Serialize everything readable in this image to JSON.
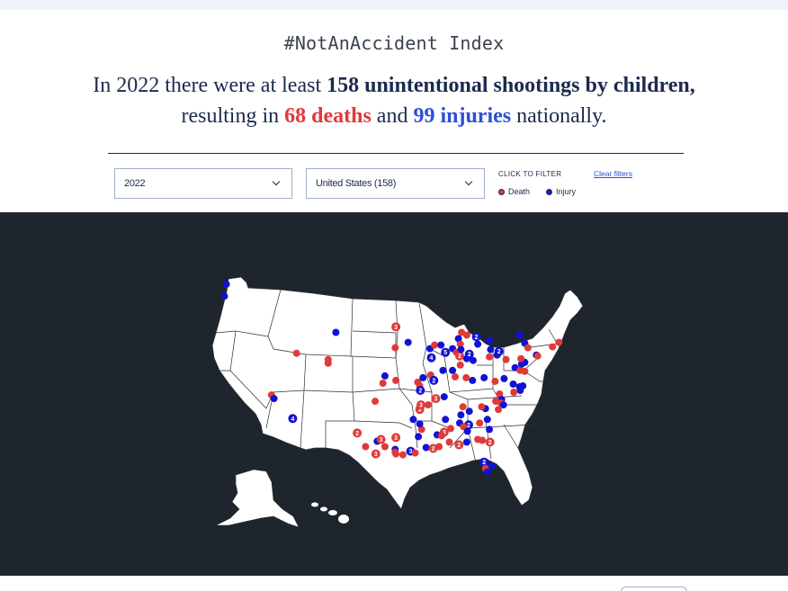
{
  "header": {
    "index_title": "#NotAnAccident Index",
    "headline": {
      "prefix": "In 2022 there were at least ",
      "total": "158 unintentional shootings by children,",
      "middle": " resulting in ",
      "deaths": "68 deaths",
      "and": " and ",
      "injuries": "99 injuries",
      "suffix": " nationally."
    }
  },
  "filters": {
    "year": "2022",
    "region": "United States (158)",
    "click_to_filter": "CLICK TO FILTER",
    "legend": [
      {
        "label": "Death",
        "color": "#e03a38"
      },
      {
        "label": "Injury",
        "color": "#1c1ccc"
      }
    ],
    "clear_label": "Clear filters"
  },
  "colors": {
    "death": "#e03a38",
    "injury": "#1212d4",
    "map_background": "#1f252d",
    "land": "#ffffff",
    "borders": "#2a2f38"
  },
  "map": {
    "region": "United States",
    "incidents": [
      {
        "lat": 48.6,
        "lon": -122.6,
        "type": "injury"
      },
      {
        "lat": 47.3,
        "lon": -122.9,
        "type": "injury"
      },
      {
        "lat": 43.3,
        "lon": -105.6,
        "type": "injury"
      },
      {
        "lat": 41.0,
        "lon": -111.7,
        "type": "death"
      },
      {
        "lat": 40.3,
        "lon": -106.8,
        "type": "death"
      },
      {
        "lat": 39.9,
        "lon": -106.8,
        "type": "death"
      },
      {
        "lat": 43.9,
        "lon": -96.3,
        "type": "death",
        "count": 3
      },
      {
        "lat": 41.6,
        "lon": -96.4,
        "type": "death"
      },
      {
        "lat": 42.2,
        "lon": -94.4,
        "type": "injury"
      },
      {
        "lat": 36.4,
        "lon": -115.6,
        "type": "death"
      },
      {
        "lat": 36.0,
        "lon": -115.2,
        "type": "injury"
      },
      {
        "lat": 33.8,
        "lon": -112.3,
        "type": "injury",
        "count": 4
      },
      {
        "lat": 38.5,
        "lon": -98.0,
        "type": "injury"
      },
      {
        "lat": 37.7,
        "lon": -98.3,
        "type": "death"
      },
      {
        "lat": 38.0,
        "lon": -96.3,
        "type": "death"
      },
      {
        "lat": 35.7,
        "lon": -99.5,
        "type": "death"
      },
      {
        "lat": 32.2,
        "lon": -102.3,
        "type": "death",
        "count": 2
      },
      {
        "lat": 30.7,
        "lon": -101.0,
        "type": "death"
      },
      {
        "lat": 31.3,
        "lon": -99.2,
        "type": "injury"
      },
      {
        "lat": 31.5,
        "lon": -98.6,
        "type": "death",
        "count": 3
      },
      {
        "lat": 29.9,
        "lon": -99.4,
        "type": "death",
        "count": 3
      },
      {
        "lat": 30.7,
        "lon": -98.0,
        "type": "death"
      },
      {
        "lat": 31.7,
        "lon": -96.3,
        "type": "death",
        "count": 3
      },
      {
        "lat": 30.4,
        "lon": -96.4,
        "type": "injury"
      },
      {
        "lat": 30.1,
        "lon": -96.4,
        "type": "death"
      },
      {
        "lat": 29.9,
        "lon": -96.3,
        "type": "death"
      },
      {
        "lat": 29.8,
        "lon": -95.2,
        "type": "death"
      },
      {
        "lat": 30.2,
        "lon": -94.0,
        "type": "injury",
        "count": 3
      },
      {
        "lat": 30.0,
        "lon": -93.3,
        "type": "death"
      },
      {
        "lat": 30.6,
        "lon": -91.6,
        "type": "injury"
      },
      {
        "lat": 30.5,
        "lon": -90.5,
        "type": "death",
        "count": 2
      },
      {
        "lat": 30.7,
        "lon": -89.6,
        "type": "death"
      },
      {
        "lat": 31.8,
        "lon": -92.8,
        "type": "injury"
      },
      {
        "lat": 32.6,
        "lon": -92.3,
        "type": "death"
      },
      {
        "lat": 33.2,
        "lon": -92.6,
        "type": "injury"
      },
      {
        "lat": 33.7,
        "lon": -93.6,
        "type": "injury"
      },
      {
        "lat": 34.8,
        "lon": -92.6,
        "type": "death",
        "count": 3
      },
      {
        "lat": 35.3,
        "lon": -92.4,
        "type": "death",
        "count": 3
      },
      {
        "lat": 36.0,
        "lon": -90.1,
        "type": "death",
        "count": 3
      },
      {
        "lat": 35.3,
        "lon": -91.3,
        "type": "death"
      },
      {
        "lat": 36.2,
        "lon": -88.8,
        "type": "injury"
      },
      {
        "lat": 37.4,
        "lon": -92.6,
        "type": "death"
      },
      {
        "lat": 36.9,
        "lon": -92.5,
        "type": "injury",
        "count": 2
      },
      {
        "lat": 37.8,
        "lon": -92.9,
        "type": "death"
      },
      {
        "lat": 38.3,
        "lon": -92.1,
        "type": "injury"
      },
      {
        "lat": 38.6,
        "lon": -90.9,
        "type": "death"
      },
      {
        "lat": 38.0,
        "lon": -90.4,
        "type": "injury",
        "count": 2
      },
      {
        "lat": 40.5,
        "lon": -90.8,
        "type": "injury",
        "count": 4
      },
      {
        "lat": 41.5,
        "lon": -91.0,
        "type": "injury"
      },
      {
        "lat": 41.9,
        "lon": -90.3,
        "type": "death"
      },
      {
        "lat": 41.9,
        "lon": -89.3,
        "type": "injury"
      },
      {
        "lat": 41.1,
        "lon": -88.6,
        "type": "injury",
        "count": 5
      },
      {
        "lat": 41.5,
        "lon": -87.5,
        "type": "injury"
      },
      {
        "lat": 41.1,
        "lon": -86.9,
        "type": "death"
      },
      {
        "lat": 40.7,
        "lon": -86.4,
        "type": "death",
        "count": 2
      },
      {
        "lat": 40.4,
        "lon": -85.3,
        "type": "injury"
      },
      {
        "lat": 40.9,
        "lon": -84.9,
        "type": "injury",
        "count": 2
      },
      {
        "lat": 40.2,
        "lon": -84.3,
        "type": "injury"
      },
      {
        "lat": 39.7,
        "lon": -86.3,
        "type": "death"
      },
      {
        "lat": 39.1,
        "lon": -89.0,
        "type": "injury"
      },
      {
        "lat": 39.1,
        "lon": -87.5,
        "type": "injury"
      },
      {
        "lat": 38.4,
        "lon": -87.1,
        "type": "death"
      },
      {
        "lat": 38.3,
        "lon": -85.4,
        "type": "death"
      },
      {
        "lat": 38.0,
        "lon": -84.4,
        "type": "injury"
      },
      {
        "lat": 38.3,
        "lon": -82.6,
        "type": "injury"
      },
      {
        "lat": 37.9,
        "lon": -80.9,
        "type": "death"
      },
      {
        "lat": 38.2,
        "lon": -79.5,
        "type": "injury"
      },
      {
        "lat": 37.6,
        "lon": -78.1,
        "type": "injury"
      },
      {
        "lat": 37.3,
        "lon": -77.1,
        "type": "injury"
      },
      {
        "lat": 37.4,
        "lon": -76.6,
        "type": "injury"
      },
      {
        "lat": 36.9,
        "lon": -77.0,
        "type": "injury"
      },
      {
        "lat": 36.7,
        "lon": -78.0,
        "type": "death"
      },
      {
        "lat": 36.5,
        "lon": -80.2,
        "type": "death"
      },
      {
        "lat": 35.9,
        "lon": -79.9,
        "type": "injury"
      },
      {
        "lat": 35.7,
        "lon": -80.8,
        "type": "death"
      },
      {
        "lat": 35.5,
        "lon": -80.0,
        "type": "death"
      },
      {
        "lat": 35.3,
        "lon": -79.6,
        "type": "injury"
      },
      {
        "lat": 34.8,
        "lon": -80.4,
        "type": "death"
      },
      {
        "lat": 34.9,
        "lon": -82.4,
        "type": "injury"
      },
      {
        "lat": 35.1,
        "lon": -83.0,
        "type": "death"
      },
      {
        "lat": 34.6,
        "lon": -84.9,
        "type": "injury"
      },
      {
        "lat": 35.1,
        "lon": -85.9,
        "type": "death"
      },
      {
        "lat": 34.2,
        "lon": -86.2,
        "type": "injury"
      },
      {
        "lat": 33.3,
        "lon": -86.4,
        "type": "injury"
      },
      {
        "lat": 33.1,
        "lon": -85.0,
        "type": "injury",
        "count": 2
      },
      {
        "lat": 32.9,
        "lon": -85.8,
        "type": "death"
      },
      {
        "lat": 32.4,
        "lon": -85.2,
        "type": "injury"
      },
      {
        "lat": 32.7,
        "lon": -87.8,
        "type": "death"
      },
      {
        "lat": 32.3,
        "lon": -88.8,
        "type": "death",
        "count": 3
      },
      {
        "lat": 32.0,
        "lon": -89.9,
        "type": "injury"
      },
      {
        "lat": 31.9,
        "lon": -89.2,
        "type": "death"
      },
      {
        "lat": 33.7,
        "lon": -88.6,
        "type": "injury"
      },
      {
        "lat": 31.2,
        "lon": -88.0,
        "type": "death"
      },
      {
        "lat": 30.9,
        "lon": -86.5,
        "type": "death",
        "count": 2
      },
      {
        "lat": 31.2,
        "lon": -85.3,
        "type": "injury"
      },
      {
        "lat": 31.5,
        "lon": -83.6,
        "type": "death"
      },
      {
        "lat": 31.4,
        "lon": -82.9,
        "type": "death"
      },
      {
        "lat": 31.2,
        "lon": -81.7,
        "type": "death",
        "count": 2
      },
      {
        "lat": 32.6,
        "lon": -81.8,
        "type": "injury"
      },
      {
        "lat": 33.7,
        "lon": -82.1,
        "type": "injury"
      },
      {
        "lat": 29.0,
        "lon": -82.6,
        "type": "injury",
        "count": 2
      },
      {
        "lat": 28.3,
        "lon": -82.4,
        "type": "death"
      },
      {
        "lat": 27.9,
        "lon": -82.1,
        "type": "injury"
      },
      {
        "lat": 28.6,
        "lon": -81.4,
        "type": "injury"
      },
      {
        "lat": 33.3,
        "lon": -83.3,
        "type": "death"
      },
      {
        "lat": 39.4,
        "lon": -77.8,
        "type": "injury"
      },
      {
        "lat": 39.1,
        "lon": -77.0,
        "type": "death"
      },
      {
        "lat": 39.0,
        "lon": -76.3,
        "type": "death"
      },
      {
        "lat": 39.8,
        "lon": -76.8,
        "type": "injury"
      },
      {
        "lat": 40.0,
        "lon": -76.3,
        "type": "injury"
      },
      {
        "lat": 40.4,
        "lon": -76.9,
        "type": "death"
      },
      {
        "lat": 40.3,
        "lon": -79.2,
        "type": "death"
      },
      {
        "lat": 40.8,
        "lon": -80.6,
        "type": "injury"
      },
      {
        "lat": 40.6,
        "lon": -81.8,
        "type": "death"
      },
      {
        "lat": 41.4,
        "lon": -81.6,
        "type": "injury"
      },
      {
        "lat": 41.2,
        "lon": -80.3,
        "type": "injury",
        "count": 2
      },
      {
        "lat": 42.4,
        "lon": -81.8,
        "type": "injury"
      },
      {
        "lat": 42.0,
        "lon": -83.6,
        "type": "injury"
      },
      {
        "lat": 42.8,
        "lon": -83.8,
        "type": "injury",
        "count": 2
      },
      {
        "lat": 43.3,
        "lon": -86.1,
        "type": "death"
      },
      {
        "lat": 43.0,
        "lon": -85.3,
        "type": "death"
      },
      {
        "lat": 42.6,
        "lon": -86.6,
        "type": "injury"
      },
      {
        "lat": 42.0,
        "lon": -86.3,
        "type": "death"
      },
      {
        "lat": 41.4,
        "lon": -86.2,
        "type": "injury"
      },
      {
        "lat": 43.0,
        "lon": -77.1,
        "type": "injury"
      },
      {
        "lat": 42.1,
        "lon": -76.3,
        "type": "injury"
      },
      {
        "lat": 41.6,
        "lon": -75.8,
        "type": "death"
      },
      {
        "lat": 40.8,
        "lon": -74.5,
        "type": "injury"
      },
      {
        "lat": 40.7,
        "lon": -74.3,
        "type": "death"
      },
      {
        "lat": 41.7,
        "lon": -72.0,
        "type": "death"
      },
      {
        "lat": 42.2,
        "lon": -71.0,
        "type": "death"
      }
    ]
  }
}
